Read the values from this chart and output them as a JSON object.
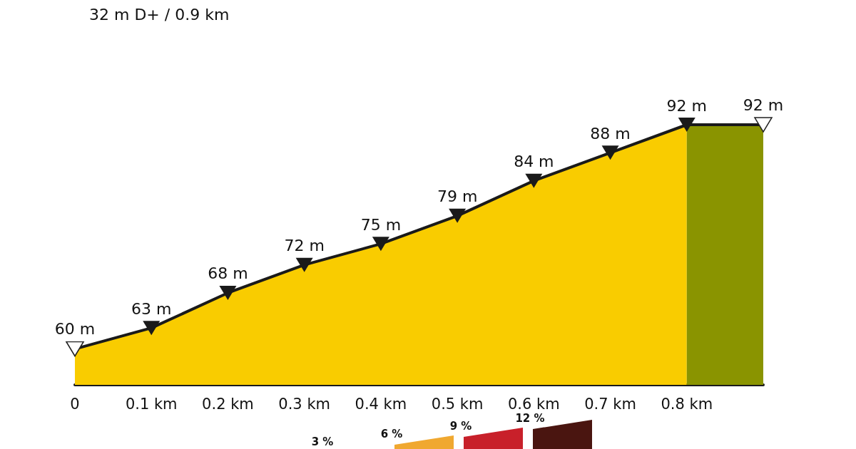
{
  "chart_data": {
    "type": "area",
    "title": "32 m D+ / 0.9 km",
    "x": [
      0,
      0.1,
      0.2,
      0.3,
      0.4,
      0.5,
      0.6,
      0.7,
      0.8,
      0.9
    ],
    "series": [
      {
        "color": "#f9cc00",
        "values": [
          60,
          63,
          68,
          72,
          75,
          79,
          84,
          88,
          92,
          null
        ],
        "value_labels": [
          "60 m",
          "63 m",
          "68 m",
          "72 m",
          "75 m",
          "79 m",
          "84 m",
          "88 m",
          "92 m",
          null
        ]
      },
      {
        "color": "#8a9400",
        "values": [
          null,
          null,
          null,
          null,
          null,
          null,
          null,
          null,
          92,
          92
        ],
        "value_labels": [
          null,
          null,
          null,
          null,
          null,
          null,
          null,
          null,
          null,
          "92 m"
        ]
      }
    ],
    "xlim": [
      0,
      0.9
    ],
    "xticks": [
      {
        "value": 0,
        "label": "0"
      },
      {
        "value": 0.1,
        "label": "0.1 km"
      },
      {
        "value": 0.2,
        "label": "0.2 km"
      },
      {
        "value": 0.3,
        "label": "0.3 km"
      },
      {
        "value": 0.4,
        "label": "0.4 km"
      },
      {
        "value": 0.5,
        "label": "0.5 km"
      },
      {
        "value": 0.6,
        "label": "0.6 km"
      },
      {
        "value": 0.7,
        "label": "0.7 km"
      },
      {
        "value": 0.8,
        "label": "0.8 km"
      }
    ],
    "tick_labels": "x",
    "marker": "triangle",
    "grid": false,
    "annotations": [
      "3 %",
      "6 %",
      "9 %",
      "12 %"
    ]
  }
}
